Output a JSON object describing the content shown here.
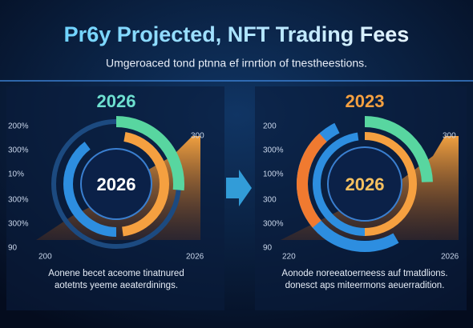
{
  "header": {
    "title": "Pr6y Projected, NFT Trading Fees",
    "subtitle": "Umgeroaced tond ptnna ef irnrtion of tnestheestions."
  },
  "panels": [
    {
      "year": "2026",
      "center": "2026",
      "axis": [
        "200%",
        "300%",
        "10%",
        "300%",
        "300%",
        "90"
      ],
      "corner": "300",
      "x_start": "200",
      "x_end": "2026",
      "caption": [
        "Aonene becet aceome tinatnured",
        "aotetnts yeeme aeaterdinings."
      ]
    },
    {
      "year": "2023",
      "center": "2026",
      "axis": [
        "200",
        "300%",
        "100%",
        "300",
        "300%",
        "90"
      ],
      "corner": "300",
      "x_start": "220",
      "x_end": "2026",
      "caption": [
        "Aonode noreeatoerneess auf tmatdlions.",
        "donesct aps miteermons aeuerradition."
      ]
    }
  ]
}
